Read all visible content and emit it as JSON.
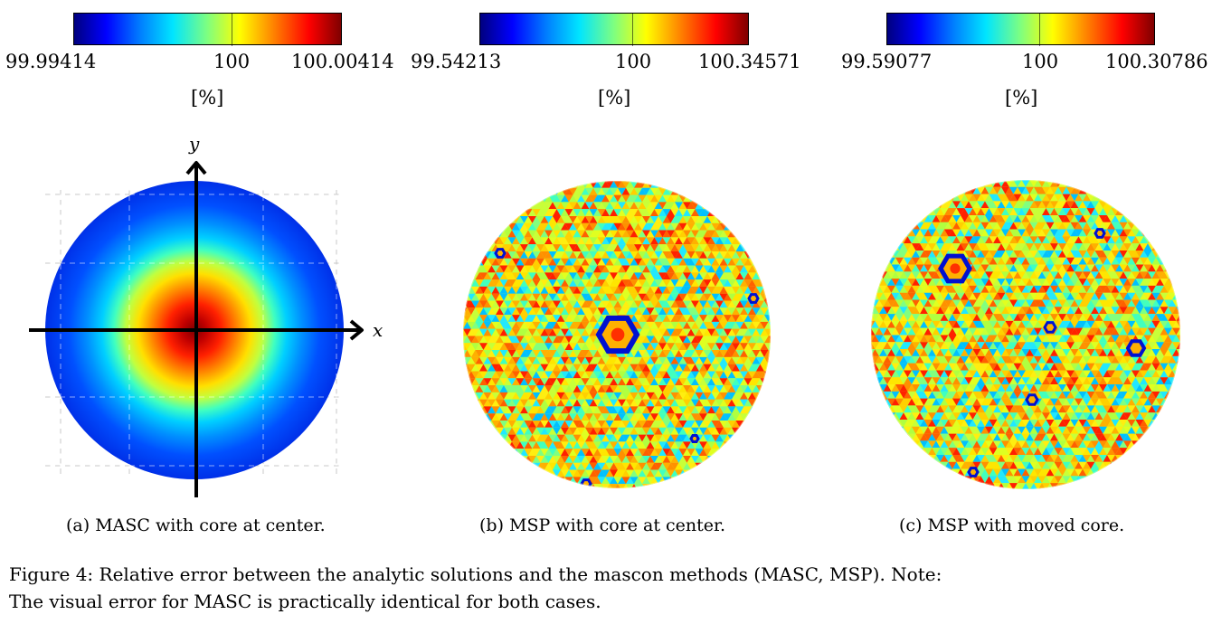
{
  "panels": [
    {
      "colorbar": {
        "min": "99.99414",
        "mid": "100",
        "max": "100.00414",
        "unit": "[%]"
      },
      "caption": "(a) MASC with core at center.",
      "axes": {
        "x": "x",
        "y": "y"
      }
    },
    {
      "colorbar": {
        "min": "99.54213",
        "mid": "100",
        "max": "100.34571",
        "unit": "[%]"
      },
      "caption": "(b) MSP with core at center."
    },
    {
      "colorbar": {
        "min": "99.59077",
        "mid": "100",
        "max": "100.30786",
        "unit": "[%]"
      },
      "caption": "(c) MSP with moved core."
    }
  ],
  "figure_caption": {
    "line1": "Figure 4: Relative error between the analytic solutions and the mascon methods (MASC, MSP). Note:",
    "line2": "The visual error for MASC is practically identical for both cases."
  },
  "colors": {
    "jet_low": "#00007f",
    "jet_mid": "#7fff7f",
    "jet_high": "#7f0000"
  }
}
